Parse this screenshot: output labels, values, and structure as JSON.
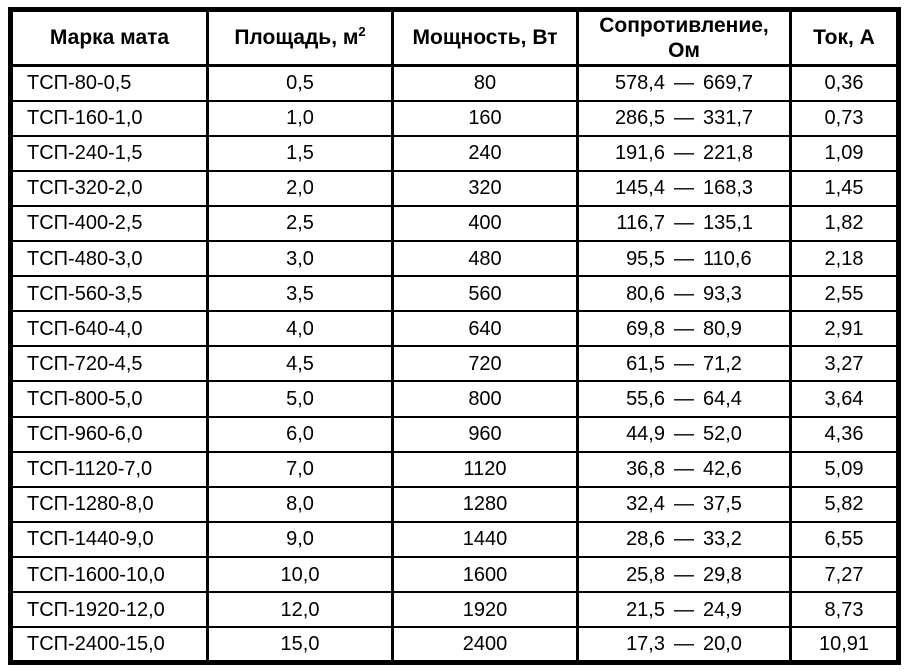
{
  "table": {
    "col_headers": {
      "mark": "Марка мата",
      "area_text": "Площадь, м",
      "area_sup": "2",
      "power": "Мощность, Вт",
      "resistance": "Сопротивление, Ом",
      "current": "Ток, А"
    },
    "dash": "—",
    "rows": [
      {
        "mark": "ТСП-80-0,5",
        "area": "0,5",
        "power": "80",
        "res_min": "578,4",
        "res_max": "669,7",
        "current": "0,36"
      },
      {
        "mark": "ТСП-160-1,0",
        "area": "1,0",
        "power": "160",
        "res_min": "286,5",
        "res_max": "331,7",
        "current": "0,73"
      },
      {
        "mark": "ТСП-240-1,5",
        "area": "1,5",
        "power": "240",
        "res_min": "191,6",
        "res_max": "221,8",
        "current": "1,09"
      },
      {
        "mark": "ТСП-320-2,0",
        "area": "2,0",
        "power": "320",
        "res_min": "145,4",
        "res_max": "168,3",
        "current": "1,45"
      },
      {
        "mark": "ТСП-400-2,5",
        "area": "2,5",
        "power": "400",
        "res_min": "116,7",
        "res_max": "135,1",
        "current": "1,82"
      },
      {
        "mark": "ТСП-480-3,0",
        "area": "3,0",
        "power": "480",
        "res_min": "95,5",
        "res_max": "110,6",
        "current": "2,18"
      },
      {
        "mark": "ТСП-560-3,5",
        "area": "3,5",
        "power": "560",
        "res_min": "80,6",
        "res_max": "93,3",
        "current": "2,55"
      },
      {
        "mark": "ТСП-640-4,0",
        "area": "4,0",
        "power": "640",
        "res_min": "69,8",
        "res_max": "80,9",
        "current": "2,91"
      },
      {
        "mark": "ТСП-720-4,5",
        "area": "4,5",
        "power": "720",
        "res_min": "61,5",
        "res_max": "71,2",
        "current": "3,27"
      },
      {
        "mark": "ТСП-800-5,0",
        "area": "5,0",
        "power": "800",
        "res_min": "55,6",
        "res_max": "64,4",
        "current": "3,64"
      },
      {
        "mark": "ТСП-960-6,0",
        "area": "6,0",
        "power": "960",
        "res_min": "44,9",
        "res_max": "52,0",
        "current": "4,36"
      },
      {
        "mark": "ТСП-1120-7,0",
        "area": "7,0",
        "power": "1120",
        "res_min": "36,8",
        "res_max": "42,6",
        "current": "5,09"
      },
      {
        "mark": "ТСП-1280-8,0",
        "area": "8,0",
        "power": "1280",
        "res_min": "32,4",
        "res_max": "37,5",
        "current": "5,82"
      },
      {
        "mark": "ТСП-1440-9,0",
        "area": "9,0",
        "power": "1440",
        "res_min": "28,6",
        "res_max": "33,2",
        "current": "6,55"
      },
      {
        "mark": "ТСП-1600-10,0",
        "area": "10,0",
        "power": "1600",
        "res_min": "25,8",
        "res_max": "29,8",
        "current": "7,27"
      },
      {
        "mark": "ТСП-1920-12,0",
        "area": "12,0",
        "power": "1920",
        "res_min": "21,5",
        "res_max": "24,9",
        "current": "8,73"
      },
      {
        "mark": "ТСП-2400-15,0",
        "area": "15,0",
        "power": "2400",
        "res_min": "17,3",
        "res_max": "20,0",
        "current": "10,91"
      }
    ]
  }
}
